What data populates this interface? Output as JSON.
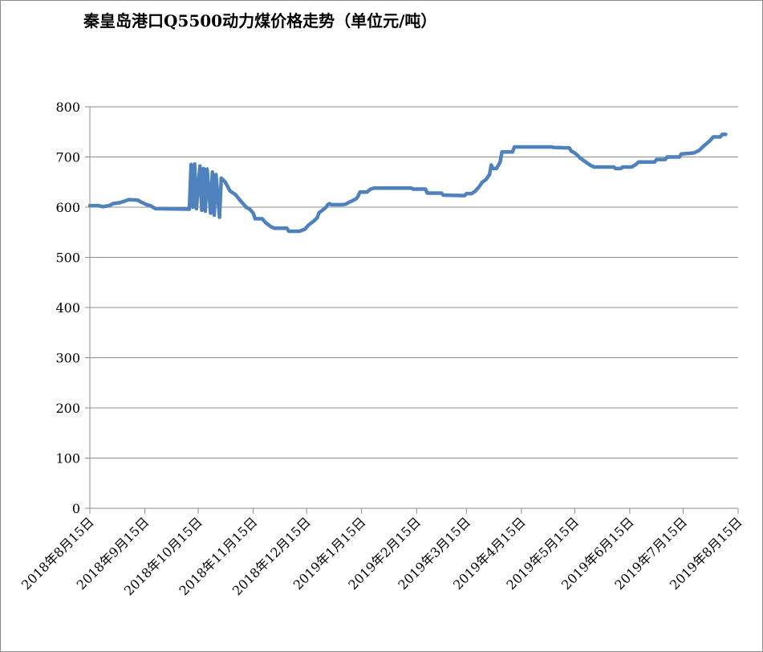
{
  "chart_data": {
    "type": "line",
    "title": "秦皇岛港口Q5500动力煤价格走势（单位元/吨）",
    "xlabel": "",
    "ylabel": "",
    "ylim": [
      0,
      800
    ],
    "yticks": [
      0,
      100,
      200,
      300,
      400,
      500,
      600,
      700,
      800
    ],
    "xlim": [
      "2018-08-15",
      "2019-08-15"
    ],
    "xtick_labels": [
      "2018年8月15日",
      "2018年9月15日",
      "2018年10月15日",
      "2018年11月15日",
      "2018年12月15日",
      "2019年1月15日",
      "2019年2月15日",
      "2019年3月15日",
      "2019年4月15日",
      "2019年5月15日",
      "2019年6月15日",
      "2019年7月15日",
      "2019年8月15日"
    ],
    "grid": true,
    "legend": "none",
    "line_color": "#4f81bd",
    "series": [
      {
        "points": [
          [
            "2018-08-15",
            603
          ],
          [
            "2018-08-20",
            603
          ],
          [
            "2018-08-22",
            601
          ],
          [
            "2018-08-26",
            603
          ],
          [
            "2018-08-28",
            607
          ],
          [
            "2018-09-01",
            609
          ],
          [
            "2018-09-06",
            615
          ],
          [
            "2018-09-11",
            614
          ],
          [
            "2018-09-13",
            610
          ],
          [
            "2018-09-16",
            605
          ],
          [
            "2018-09-18",
            603
          ],
          [
            "2018-09-21",
            597
          ],
          [
            "2018-10-10",
            596
          ],
          [
            "2018-10-11",
            685
          ],
          [
            "2018-10-12",
            600
          ],
          [
            "2018-10-13",
            686
          ],
          [
            "2018-10-14",
            597
          ],
          [
            "2018-10-16",
            682
          ],
          [
            "2018-10-17",
            594
          ],
          [
            "2018-10-18",
            677
          ],
          [
            "2018-10-19",
            592
          ],
          [
            "2018-10-20",
            676
          ],
          [
            "2018-10-22",
            588
          ],
          [
            "2018-10-23",
            670
          ],
          [
            "2018-10-24",
            584
          ],
          [
            "2018-10-25",
            665
          ],
          [
            "2018-10-27",
            580
          ],
          [
            "2018-10-28",
            658
          ],
          [
            "2018-10-30",
            651
          ],
          [
            "2018-10-31",
            645
          ],
          [
            "2018-11-01",
            638
          ],
          [
            "2018-11-02",
            632
          ],
          [
            "2018-11-05",
            625
          ],
          [
            "2018-11-07",
            616
          ],
          [
            "2018-11-09",
            608
          ],
          [
            "2018-11-11",
            600
          ],
          [
            "2018-11-13",
            596
          ],
          [
            "2018-11-15",
            588
          ],
          [
            "2018-11-16",
            577
          ],
          [
            "2018-11-20",
            577
          ],
          [
            "2018-11-22",
            569
          ],
          [
            "2018-11-25",
            561
          ],
          [
            "2018-11-27",
            558
          ],
          [
            "2018-12-04",
            558
          ],
          [
            "2018-12-05",
            552
          ],
          [
            "2018-12-11",
            552
          ],
          [
            "2018-12-14",
            556
          ],
          [
            "2018-12-16",
            564
          ],
          [
            "2018-12-19",
            572
          ],
          [
            "2018-12-21",
            579
          ],
          [
            "2018-12-22",
            589
          ],
          [
            "2018-12-24",
            594
          ],
          [
            "2018-12-26",
            600
          ],
          [
            "2018-12-27",
            605
          ],
          [
            "2018-12-28",
            607
          ],
          [
            "2018-12-29",
            605
          ],
          [
            "2019-01-04",
            605
          ],
          [
            "2019-01-06",
            606
          ],
          [
            "2019-01-08",
            610
          ],
          [
            "2019-01-10",
            613
          ],
          [
            "2019-01-12",
            617
          ],
          [
            "2019-01-13",
            622
          ],
          [
            "2019-01-14",
            630
          ],
          [
            "2019-01-18",
            630
          ],
          [
            "2019-01-20",
            636
          ],
          [
            "2019-01-22",
            638
          ],
          [
            "2019-02-12",
            638
          ],
          [
            "2019-02-13",
            636
          ],
          [
            "2019-02-20",
            636
          ],
          [
            "2019-02-21",
            628
          ],
          [
            "2019-03-01",
            628
          ],
          [
            "2019-03-02",
            624
          ],
          [
            "2019-03-14",
            623
          ],
          [
            "2019-03-15",
            627
          ],
          [
            "2019-03-18",
            627
          ],
          [
            "2019-03-20",
            632
          ],
          [
            "2019-03-22",
            640
          ],
          [
            "2019-03-24",
            650
          ],
          [
            "2019-03-26",
            655
          ],
          [
            "2019-03-28",
            665
          ],
          [
            "2019-03-29",
            684
          ],
          [
            "2019-03-30",
            677
          ],
          [
            "2019-04-01",
            677
          ],
          [
            "2019-04-03",
            690
          ],
          [
            "2019-04-04",
            710
          ],
          [
            "2019-04-10",
            710
          ],
          [
            "2019-04-11",
            720
          ],
          [
            "2019-05-02",
            720
          ],
          [
            "2019-05-03",
            719
          ],
          [
            "2019-05-12",
            718
          ],
          [
            "2019-05-13",
            712
          ],
          [
            "2019-05-15",
            708
          ],
          [
            "2019-05-17",
            702
          ],
          [
            "2019-05-18",
            698
          ],
          [
            "2019-05-20",
            693
          ],
          [
            "2019-05-22",
            688
          ],
          [
            "2019-05-24",
            683
          ],
          [
            "2019-05-26",
            680
          ],
          [
            "2019-05-29",
            680
          ],
          [
            "2019-06-06",
            680
          ],
          [
            "2019-06-07",
            677
          ],
          [
            "2019-06-10",
            677
          ],
          [
            "2019-06-11",
            680
          ],
          [
            "2019-06-16",
            680
          ],
          [
            "2019-06-18",
            684
          ],
          [
            "2019-06-20",
            690
          ],
          [
            "2019-06-29",
            690
          ],
          [
            "2019-06-30",
            695
          ],
          [
            "2019-07-05",
            695
          ],
          [
            "2019-07-06",
            700
          ],
          [
            "2019-07-13",
            700
          ],
          [
            "2019-07-14",
            706
          ],
          [
            "2019-07-21",
            708
          ],
          [
            "2019-07-24",
            713
          ],
          [
            "2019-07-27",
            723
          ],
          [
            "2019-07-30",
            732
          ],
          [
            "2019-08-01",
            740
          ],
          [
            "2019-08-05",
            740
          ],
          [
            "2019-08-06",
            745
          ],
          [
            "2019-08-08",
            745
          ]
        ]
      }
    ]
  }
}
